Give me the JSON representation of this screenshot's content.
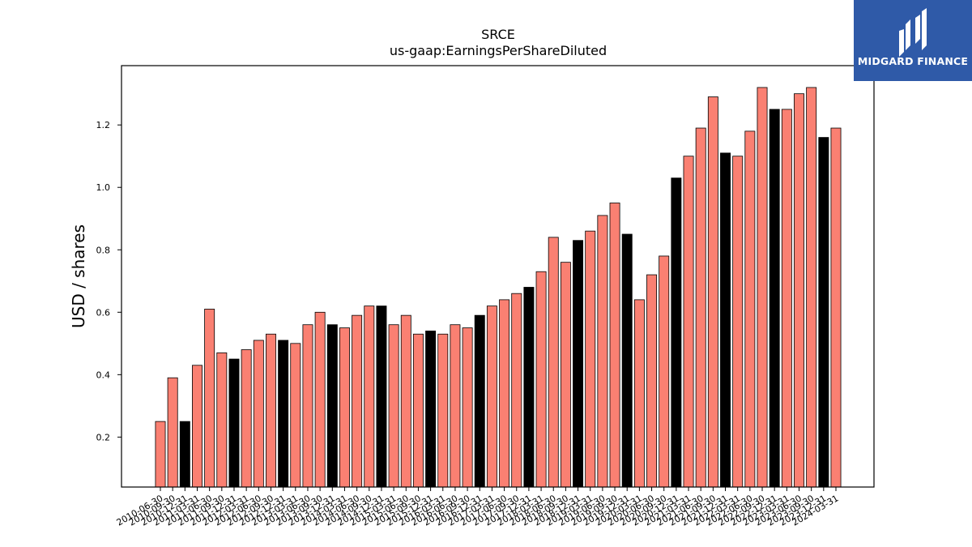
{
  "logo": {
    "text": "MIDGARD FINANCE",
    "colors": {
      "background": "#2f5aa8",
      "foreground": "#ffffff"
    }
  },
  "chart_data": {
    "type": "bar",
    "title": "SRCE",
    "subtitle": "us-gaap:EarningsPerShareDiluted",
    "xlabel": "",
    "ylabel": "USD / shares",
    "ylim": [
      0.04,
      1.39
    ],
    "yticks": [
      0.2,
      0.4,
      0.6,
      0.8,
      1.0,
      1.2
    ],
    "grid": false,
    "legend": "none",
    "colors": {
      "default": "#fa8072",
      "highlight": "#000000",
      "edge": "#000000"
    },
    "categories": [
      "2010-06-30",
      "2010-09-30",
      "2010-12-31",
      "2011-03-31",
      "2011-06-30",
      "2011-09-30",
      "2011-12-31",
      "2012-03-31",
      "2012-06-30",
      "2012-09-30",
      "2012-12-31",
      "2013-03-31",
      "2013-06-30",
      "2013-09-30",
      "2013-12-31",
      "2014-03-31",
      "2014-06-30",
      "2014-09-30",
      "2014-12-31",
      "2015-03-31",
      "2015-06-30",
      "2015-09-30",
      "2015-12-31",
      "2016-03-31",
      "2016-06-30",
      "2016-09-30",
      "2016-12-31",
      "2017-03-31",
      "2017-06-30",
      "2017-09-30",
      "2017-12-31",
      "2018-03-31",
      "2018-06-30",
      "2018-09-30",
      "2018-12-31",
      "2019-03-31",
      "2019-06-30",
      "2019-09-30",
      "2019-12-31",
      "2020-03-31",
      "2020-06-30",
      "2020-09-30",
      "2020-12-31",
      "2021-03-31",
      "2021-06-30",
      "2021-09-30",
      "2021-12-31",
      "2022-03-31",
      "2022-06-30",
      "2022-09-30",
      "2022-12-31",
      "2023-03-31",
      "2023-06-30",
      "2023-09-30",
      "2023-12-31",
      "2024-03-31"
    ],
    "values": [
      0.25,
      0.39,
      0.25,
      0.43,
      0.61,
      0.47,
      0.45,
      0.48,
      0.51,
      0.53,
      0.51,
      0.5,
      0.56,
      0.6,
      0.56,
      0.55,
      0.59,
      0.62,
      0.62,
      0.56,
      0.59,
      0.53,
      0.54,
      0.53,
      0.56,
      0.55,
      0.59,
      0.62,
      0.64,
      0.66,
      0.68,
      0.73,
      0.84,
      0.76,
      0.83,
      0.86,
      0.91,
      0.95,
      0.85,
      0.64,
      0.72,
      0.78,
      1.03,
      1.1,
      1.19,
      1.29,
      1.11,
      1.1,
      1.18,
      1.32,
      1.25,
      1.25,
      1.3,
      1.32,
      1.16,
      1.19
    ],
    "highlighted": [
      false,
      false,
      true,
      false,
      false,
      false,
      true,
      false,
      false,
      false,
      true,
      false,
      false,
      false,
      true,
      false,
      false,
      false,
      true,
      false,
      false,
      false,
      true,
      false,
      false,
      false,
      true,
      false,
      false,
      false,
      true,
      false,
      false,
      false,
      true,
      false,
      false,
      false,
      true,
      false,
      false,
      false,
      true,
      false,
      false,
      false,
      true,
      false,
      false,
      false,
      true,
      false,
      false,
      false,
      true,
      false
    ]
  }
}
